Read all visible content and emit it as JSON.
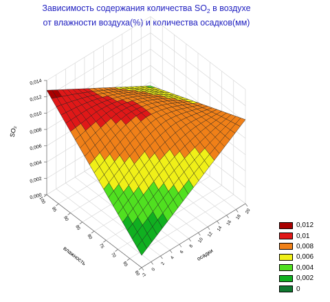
{
  "title": {
    "prefix": "Зависимость содержания количества SO",
    "sub": "2",
    "suffix": " в воздухе",
    "line2": "от влажности воздуха(%) и количества осадков(мм)"
  },
  "chart_data": {
    "type": "surface3d",
    "zlabel": "SO₂",
    "xlabel": "влажность",
    "ylabel": "осадки",
    "x_ticks": [
      "100",
      "95",
      "90",
      "85",
      "80",
      "75",
      "70",
      "65",
      "60"
    ],
    "y_ticks": [
      "-2",
      "0",
      "2",
      "4",
      "6",
      "8",
      "10",
      "12",
      "14",
      "16",
      "18",
      "20"
    ],
    "z_ticks": [
      "0,000",
      "0,002",
      "0,004",
      "0,006",
      "0,008",
      "0,010",
      "0,012",
      "0,014"
    ],
    "xlim": [
      60,
      100
    ],
    "ylim": [
      -2,
      20
    ],
    "zlim": [
      0,
      0.014
    ],
    "corner_values": {
      "humidity_100_precip_minus2": 0.0128,
      "humidity_100_precip_20": 0.0055,
      "humidity_60_precip_minus2": 0.0015,
      "humidity_60_precip_20": 0.0103
    },
    "grid": true,
    "legend_position": "bottom-right",
    "legend": [
      {
        "label": "0,012",
        "color": "#a80000"
      },
      {
        "label": "0,01",
        "color": "#e01818"
      },
      {
        "label": "0,008",
        "color": "#f08018"
      },
      {
        "label": "0,006",
        "color": "#f0f018"
      },
      {
        "label": "0,004",
        "color": "#50e020"
      },
      {
        "label": "0,002",
        "color": "#10b020"
      },
      {
        "label": "0",
        "color": "#107830"
      }
    ]
  }
}
